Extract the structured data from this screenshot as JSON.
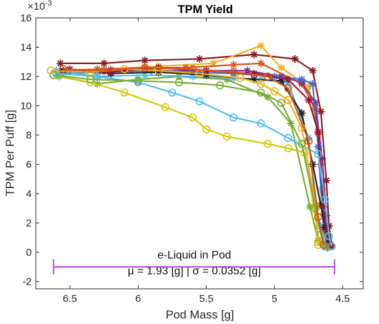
{
  "chart_data": {
    "type": "scatter",
    "title": "TPM Yield",
    "xlabel": "Pod Mass [g]",
    "ylabel": "TPM Per Puff [g]",
    "exponent_label": "×10",
    "exponent_power": "-3",
    "x_reversed": true,
    "xlim": [
      4.35,
      6.75
    ],
    "ylim": [
      -2.5,
      16
    ],
    "x_ticks": [
      "6.5",
      "6",
      "5.5",
      "5",
      "4.5"
    ],
    "x_tick_values": [
      6.5,
      6.0,
      5.5,
      5.0,
      4.5
    ],
    "y_ticks": [
      "-2",
      "0",
      "2",
      "4",
      "6",
      "8",
      "10",
      "12",
      "14",
      "16"
    ],
    "y_tick_values": [
      -2,
      0,
      2,
      4,
      6,
      8,
      10,
      12,
      14,
      16
    ],
    "grid": false,
    "annotation": {
      "line1": "e-Liquid in Pod",
      "line2": "μ = 1.93 [g] | σ = 0.0352 [g]",
      "x_start": 6.62,
      "x_end": 4.56,
      "y": -1.0,
      "color": "#C040E0"
    },
    "series": [
      {
        "color": "#8B1A1A",
        "marker": "star",
        "x": [
          6.57,
          6.25,
          5.95,
          5.55,
          5.15,
          4.85,
          4.72,
          4.66,
          4.62,
          4.6,
          4.58
        ],
        "y": [
          12.9,
          12.9,
          13.1,
          13.2,
          13.5,
          13.2,
          12.4,
          9.6,
          4.9,
          1.8,
          0.4
        ]
      },
      {
        "color": "#EDB120",
        "marker": "star",
        "x": [
          6.52,
          6.2,
          5.85,
          5.45,
          5.1,
          4.95,
          4.75,
          4.68,
          4.65,
          4.63,
          4.61
        ],
        "y": [
          12.4,
          12.5,
          12.7,
          12.9,
          14.1,
          12.6,
          11.3,
          8.1,
          4.3,
          1.6,
          0.6
        ]
      },
      {
        "color": "#D95319",
        "marker": "star",
        "x": [
          6.6,
          6.3,
          5.95,
          5.65,
          5.3,
          5.1,
          4.8,
          4.7,
          4.66,
          4.64,
          4.62
        ],
        "y": [
          12.4,
          12.5,
          12.6,
          12.6,
          12.8,
          12.9,
          11.5,
          9.8,
          6.0,
          2.6,
          0.5
        ]
      },
      {
        "color": "#7E2F8E",
        "marker": "star",
        "x": [
          6.55,
          6.2,
          5.9,
          5.5,
          5.2,
          4.95,
          4.8,
          4.7,
          4.65,
          4.62,
          4.6
        ],
        "y": [
          12.3,
          12.4,
          12.4,
          12.4,
          12.4,
          12.0,
          11.6,
          10.2,
          6.4,
          2.5,
          0.7
        ]
      },
      {
        "color": "#3A6FD8",
        "marker": "star",
        "x": [
          6.58,
          6.3,
          5.9,
          5.6,
          5.3,
          5.0,
          4.8,
          4.72,
          4.68,
          4.64,
          4.61
        ],
        "y": [
          12.2,
          12.3,
          12.4,
          12.3,
          12.2,
          12.0,
          11.8,
          11.5,
          7.2,
          1.5,
          0.3
        ]
      },
      {
        "color": "#77AC30",
        "marker": "star",
        "x": [
          6.58,
          6.3,
          6.0,
          5.7,
          5.35,
          5.05,
          4.88,
          4.74,
          4.68,
          4.65,
          4.62
        ],
        "y": [
          12.0,
          11.5,
          11.8,
          12.0,
          11.8,
          10.6,
          8.8,
          3.1,
          0.8,
          0.6,
          0.4
        ]
      },
      {
        "color": "#4DBEEE",
        "marker": "star",
        "x": [
          6.6,
          6.3,
          5.95,
          5.6,
          5.3,
          5.1,
          4.9,
          4.75,
          4.7,
          4.66,
          4.63
        ],
        "y": [
          12.4,
          12.0,
          12.1,
          12.0,
          11.9,
          11.8,
          11.6,
          7.8,
          3.2,
          1.8,
          0.5
        ]
      },
      {
        "color": "#222222",
        "marker": "star",
        "x": [
          6.55,
          6.2,
          5.85,
          5.5,
          5.15,
          4.95,
          4.8,
          4.72,
          4.66,
          4.63,
          4.6
        ],
        "y": [
          12.4,
          12.2,
          12.3,
          12.1,
          11.8,
          11.7,
          9.5,
          6.0,
          3.2,
          1.7,
          0.6
        ]
      },
      {
        "color": "#A2142F",
        "marker": "star",
        "x": [
          6.5,
          6.2,
          5.85,
          5.5,
          5.15,
          4.9,
          4.75,
          4.68,
          4.64,
          4.62,
          4.59
        ],
        "y": [
          12.5,
          12.3,
          12.6,
          12.4,
          12.2,
          11.8,
          10.4,
          8.2,
          3.1,
          1.4,
          0.5
        ]
      },
      {
        "color": "#D4C800",
        "marker": "circle",
        "x": [
          6.62,
          6.35,
          6.1,
          5.8,
          5.6,
          5.5,
          5.35,
          5.05,
          4.9,
          4.78,
          4.7,
          4.68
        ],
        "y": [
          12.1,
          11.6,
          10.9,
          9.9,
          9.2,
          8.4,
          7.9,
          7.4,
          7.1,
          6.8,
          2.5,
          0.5
        ]
      },
      {
        "color": "#4DBEEE",
        "marker": "circle",
        "x": [
          6.6,
          6.3,
          6.0,
          5.75,
          5.55,
          5.3,
          5.1,
          4.9,
          4.68,
          4.63,
          4.6,
          4.58
        ],
        "y": [
          12.2,
          12.0,
          11.6,
          10.9,
          10.3,
          9.2,
          8.8,
          7.8,
          6.7,
          3.6,
          1.1,
          0.4
        ]
      },
      {
        "color": "#EDB120",
        "marker": "circle",
        "x": [
          6.64,
          6.35,
          6.1,
          5.85,
          5.55,
          5.25,
          5.1,
          5.0,
          4.9,
          4.8,
          4.7,
          4.68
        ],
        "y": [
          12.4,
          12.3,
          12.5,
          12.4,
          12.2,
          11.9,
          11.5,
          11.0,
          10.4,
          8.5,
          3.2,
          0.7
        ]
      },
      {
        "color": "#77AC30",
        "marker": "circle",
        "x": [
          6.62,
          6.35,
          6.0,
          5.7,
          5.4,
          5.1,
          4.95,
          4.8,
          4.7,
          4.66,
          4.63
        ],
        "y": [
          12.1,
          11.8,
          11.7,
          11.6,
          11.4,
          10.9,
          10.2,
          7.4,
          3.0,
          1.2,
          0.4
        ]
      },
      {
        "color": "#D95319",
        "marker": "circle",
        "x": [
          6.55,
          6.25,
          5.95,
          5.6,
          5.3,
          5.05,
          4.9,
          4.75,
          4.68,
          4.64
        ],
        "y": [
          12.5,
          12.4,
          12.6,
          12.5,
          12.3,
          12.0,
          11.2,
          7.6,
          2.4,
          0.5
        ]
      }
    ]
  }
}
